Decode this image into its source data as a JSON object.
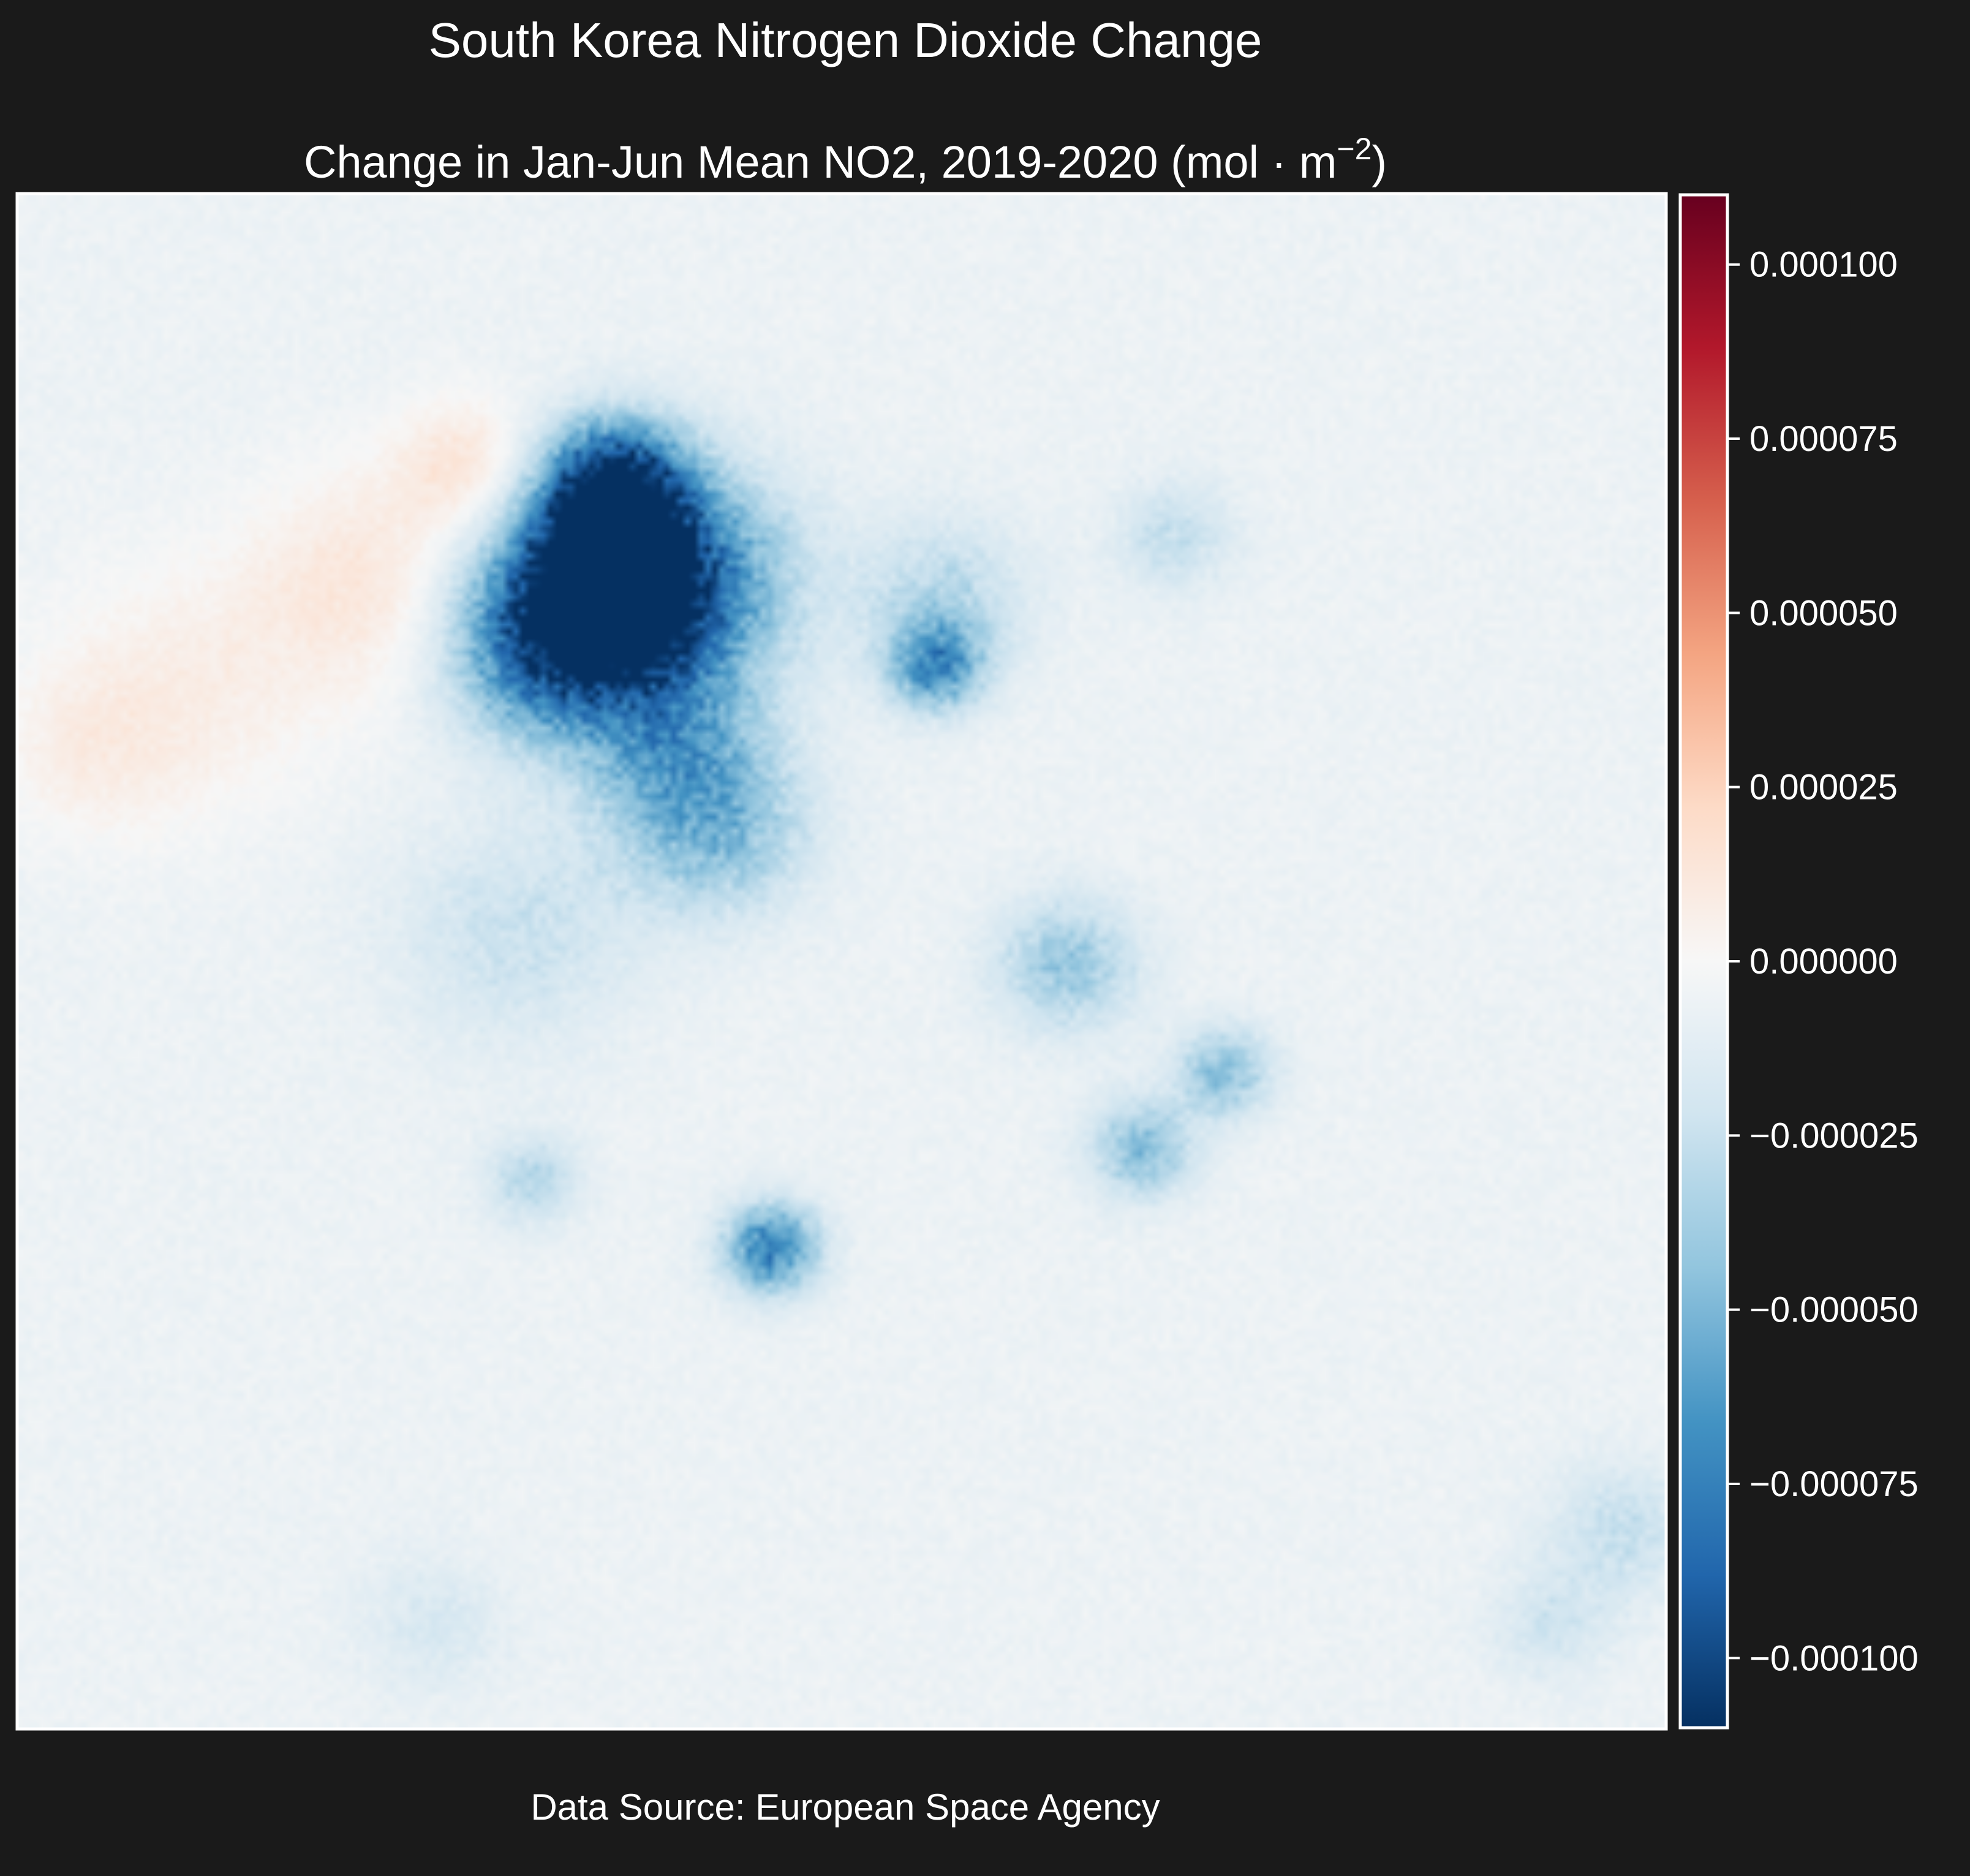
{
  "figure": {
    "title": "South Korea Nitrogen Dioxide Change",
    "subtitle_text": "Change in Jan-Jun Mean NO2, 2019-2020 (mol",
    "subtitle_unit_base": "m",
    "subtitle_unit_exp": "−2",
    "subtitle_close": ")",
    "source": "Data Source: European Space Agency"
  },
  "colors": {
    "background": "#1a1a1a",
    "frame": "#ffffff",
    "colormap": "RdBu_r"
  },
  "chart_data": {
    "type": "heatmap",
    "title": "South Korea Nitrogen Dioxide Change",
    "subtitle": "Change in Jan-Jun Mean NO2, 2019-2020 (mol·m⁻²)",
    "xlabel": "",
    "ylabel": "",
    "grid": false,
    "colorbar": {
      "colormap": "RdBu_r",
      "range": [
        -0.00011,
        0.00011
      ],
      "ticks": [
        0.0001,
        7.5e-05,
        5e-05,
        2.5e-05,
        0.0,
        -2.5e-05,
        -5e-05,
        -7.5e-05,
        -0.0001
      ],
      "tick_labels": [
        "0.000100",
        "0.000075",
        "0.000050",
        "0.000025",
        "0.000000",
        "−0.000025",
        "−0.000050",
        "−0.000075",
        "−0.000100"
      ]
    },
    "baseline_value": -6e-06,
    "features": [
      {
        "kind": "hotspot",
        "x": 0.36,
        "y": 0.19,
        "value": -0.000105,
        "spread": 0.03
      },
      {
        "kind": "hotspot",
        "x": 0.36,
        "y": 0.255,
        "value": -0.000105,
        "spread": 0.035
      },
      {
        "kind": "hotspot",
        "x": 0.33,
        "y": 0.27,
        "value": -7e-05,
        "spread": 0.045
      },
      {
        "kind": "hotspot",
        "x": 0.4,
        "y": 0.25,
        "value": -6e-05,
        "spread": 0.05
      },
      {
        "kind": "hotspot",
        "x": 0.39,
        "y": 0.35,
        "value": -4e-05,
        "spread": 0.04
      },
      {
        "kind": "hotspot",
        "x": 0.42,
        "y": 0.41,
        "value": -4e-05,
        "spread": 0.04
      },
      {
        "kind": "hotspot",
        "x": 0.31,
        "y": 0.31,
        "value": -3e-05,
        "spread": 0.035
      },
      {
        "kind": "hotspot",
        "x": 0.555,
        "y": 0.305,
        "value": -6e-05,
        "spread": 0.02
      },
      {
        "kind": "hotspot",
        "x": 0.56,
        "y": 0.26,
        "value": -2.5e-05,
        "spread": 0.035
      },
      {
        "kind": "hotspot",
        "x": 0.7,
        "y": 0.22,
        "value": -2e-05,
        "spread": 0.025
      },
      {
        "kind": "hotspot",
        "x": 0.635,
        "y": 0.5,
        "value": -3.5e-05,
        "spread": 0.03
      },
      {
        "kind": "hotspot",
        "x": 0.73,
        "y": 0.57,
        "value": -4e-05,
        "spread": 0.02
      },
      {
        "kind": "hotspot",
        "x": 0.68,
        "y": 0.62,
        "value": -4e-05,
        "spread": 0.022
      },
      {
        "kind": "hotspot",
        "x": 0.455,
        "y": 0.685,
        "value": -7e-05,
        "spread": 0.02
      },
      {
        "kind": "hotspot",
        "x": 0.31,
        "y": 0.64,
        "value": -2.5e-05,
        "spread": 0.02
      },
      {
        "kind": "hotspot",
        "x": 0.3,
        "y": 0.48,
        "value": -1.8e-05,
        "spread": 0.05
      },
      {
        "kind": "hotspot",
        "x": 0.97,
        "y": 0.87,
        "value": -2e-05,
        "spread": 0.03
      },
      {
        "kind": "hotspot",
        "x": 0.93,
        "y": 0.93,
        "value": -1.5e-05,
        "spread": 0.025
      },
      {
        "kind": "hotspot",
        "x": 0.25,
        "y": 0.93,
        "value": -1.2e-05,
        "spread": 0.03
      },
      {
        "kind": "hotspot",
        "x": 0.27,
        "y": 0.175,
        "value": 2e-05,
        "spread": 0.03
      },
      {
        "kind": "hotspot",
        "x": 0.21,
        "y": 0.25,
        "value": 1.8e-05,
        "spread": 0.05
      },
      {
        "kind": "hotspot",
        "x": 0.1,
        "y": 0.32,
        "value": 1.2e-05,
        "spread": 0.06
      },
      {
        "kind": "hotspot",
        "x": 0.04,
        "y": 0.36,
        "value": 1e-05,
        "spread": 0.04
      }
    ]
  }
}
